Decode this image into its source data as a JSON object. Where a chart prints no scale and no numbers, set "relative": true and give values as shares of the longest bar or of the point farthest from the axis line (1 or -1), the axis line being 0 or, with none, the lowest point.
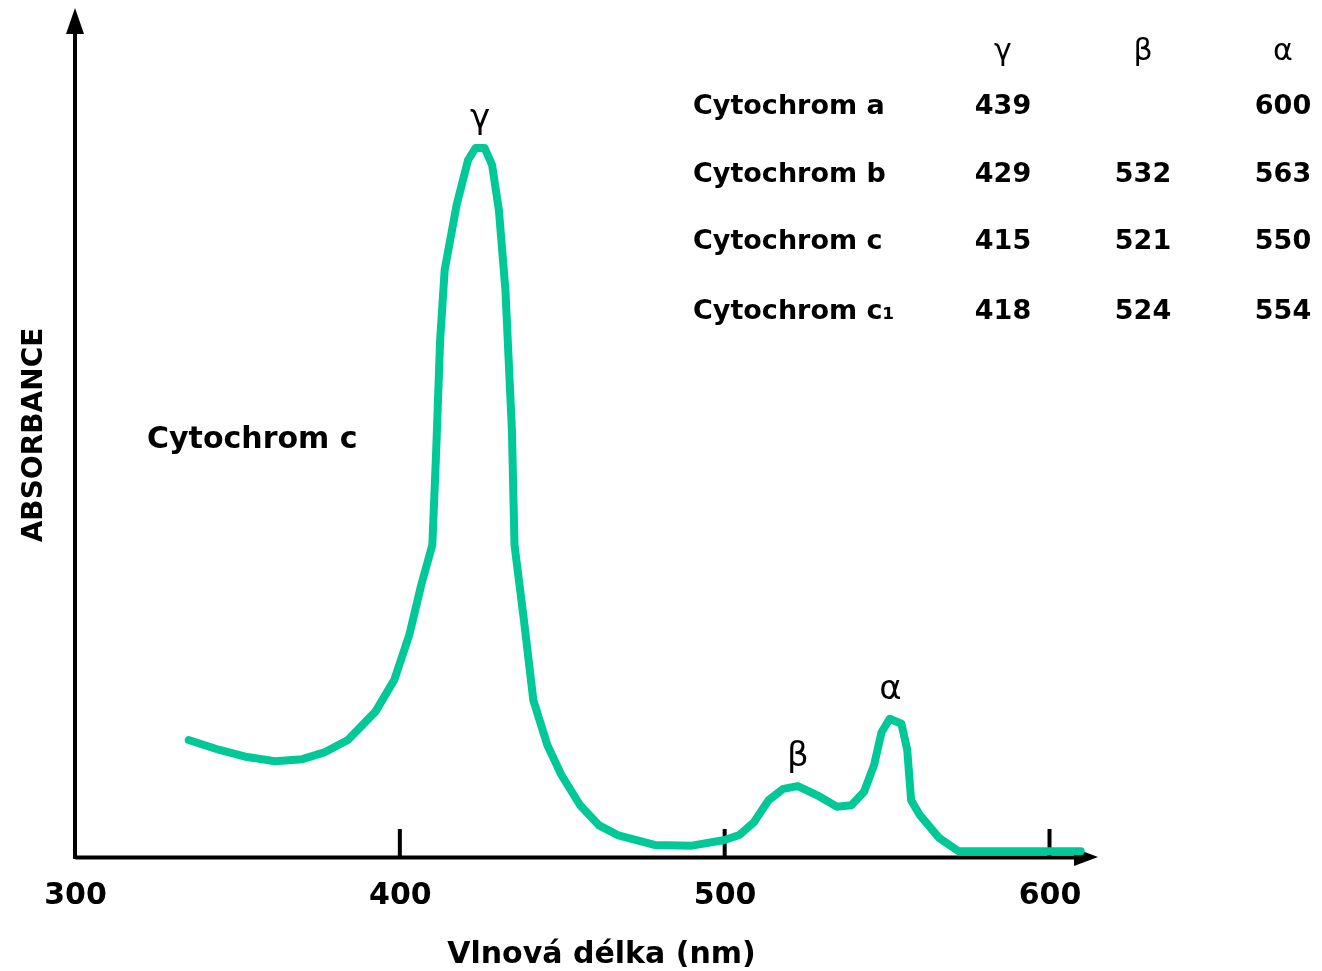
{
  "chart_data": {
    "type": "line",
    "xlabel": "Vlnová délka (nm)",
    "ylabel": "ABSORBANCE",
    "relative": true,
    "xlim": [
      300,
      610
    ],
    "xticks": [
      300,
      400,
      500,
      600
    ],
    "grid": false,
    "marker": "none",
    "line_style": "solid",
    "series": [
      {
        "name": "Cytochrom c",
        "color": "#00c896",
        "x": [
          335,
          339.7,
          344.5,
          353,
          361.6,
          370,
          377,
          384,
          392.5,
          398.3,
          402.9,
          406.6,
          410,
          411.2,
          412.4,
          413.8,
          417.5,
          421,
          423.3,
          426.1,
          428.4,
          430.5,
          432.5,
          434.5,
          435.3,
          438.2,
          441.1,
          445.4,
          449.7,
          455.5,
          461.2,
          467,
          478.4,
          489.9,
          500,
          504.5,
          509,
          513.5,
          518,
          522.5,
          528.5,
          534.5,
          539,
          542.9,
          546,
          548.3,
          550.8,
          554.4,
          556.2,
          557.4,
          560.1,
          566,
          572,
          585.6,
          609.6
        ],
        "values": [
          0.165,
          0.158,
          0.151,
          0.141,
          0.135,
          0.138,
          0.148,
          0.165,
          0.205,
          0.25,
          0.313,
          0.384,
          0.44,
          0.574,
          0.729,
          0.828,
          0.92,
          0.983,
          1.0,
          1.0,
          0.976,
          0.912,
          0.8,
          0.602,
          0.44,
          0.334,
          0.221,
          0.158,
          0.116,
          0.073,
          0.045,
          0.031,
          0.017,
          0.016,
          0.024,
          0.031,
          0.049,
          0.08,
          0.096,
          0.1,
          0.087,
          0.071,
          0.073,
          0.092,
          0.13,
          0.176,
          0.195,
          0.188,
          0.151,
          0.08,
          0.059,
          0.027,
          0.008,
          0.008,
          0.008
        ]
      }
    ],
    "annotations": [
      {
        "text": "γ",
        "x": 424.7,
        "y": 1.0
      },
      {
        "text": "β",
        "x": 522.5,
        "y": 0.1
      },
      {
        "text": "α",
        "x": 551,
        "y": 0.195
      },
      "γ",
      "β",
      "α",
      "Cytochrom a",
      "439",
      "600",
      "Cytochrom b",
      "429",
      "532",
      "563",
      "Cytochrom c",
      "415",
      "521",
      "550",
      "Cytochrom c₁",
      "418",
      "524",
      "554"
    ]
  }
}
